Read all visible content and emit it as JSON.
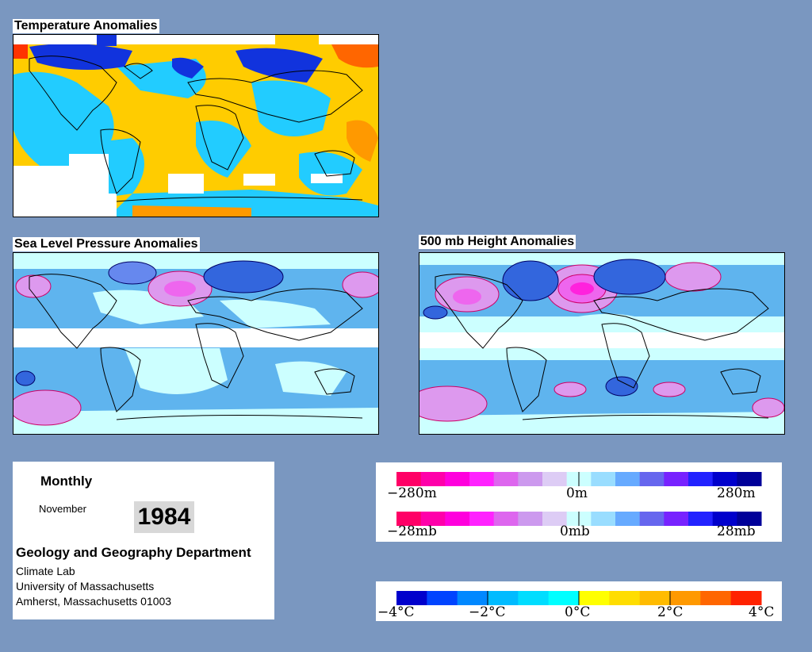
{
  "maps": {
    "temperature": {
      "title": "Temperature Anomalies"
    },
    "slp": {
      "title": "Sea Level Pressure Anomalies"
    },
    "height500": {
      "title": "500 mb Height Anomalies"
    }
  },
  "info": {
    "period": "Monthly",
    "month": "November",
    "year": "1984",
    "department": "Geology and Geography Department",
    "lab": "Climate Lab",
    "university": "University of Massachusetts",
    "address": "Amherst, Massachusetts 01003"
  },
  "legends": {
    "height": {
      "labels": [
        "−280m",
        "0m",
        "280m"
      ],
      "colors": [
        "#ff0066",
        "#ff00aa",
        "#ff00dd",
        "#ff22ff",
        "#dd66ee",
        "#cc99ee",
        "#ddccf5",
        "#ccffff",
        "#99ddff",
        "#66aaff",
        "#6666ee",
        "#7722ff",
        "#2222ff",
        "#0000cc",
        "#000099"
      ]
    },
    "pressure": {
      "labels": [
        "−28mb",
        "0mb",
        "28mb"
      ],
      "colors": [
        "#ff0066",
        "#ff00aa",
        "#ff00dd",
        "#ff22ff",
        "#dd66ee",
        "#cc99ee",
        "#ddccf5",
        "#ccffff",
        "#99ddff",
        "#66aaff",
        "#6666ee",
        "#7722ff",
        "#2222ff",
        "#0000cc",
        "#000099"
      ]
    },
    "temperature": {
      "labels": [
        "−4°C",
        "−2°C",
        "0°C",
        "2°C",
        "4°C"
      ],
      "colors": [
        "#0000cc",
        "#0044ff",
        "#0088ff",
        "#00bbff",
        "#00ddff",
        "#00ffff",
        "#ffff00",
        "#ffdd00",
        "#ffbb00",
        "#ff9900",
        "#ff6600",
        "#ff2200"
      ]
    }
  },
  "colors": {
    "background": "#7a97c0",
    "temp_warm": "#ffcc00",
    "temp_cool": "#22ccff",
    "temp_cold": "#1133dd",
    "pressure_pos": "#ee66ee",
    "pressure_neg": "#5588ee",
    "pressure_zero": "#ccffff"
  }
}
